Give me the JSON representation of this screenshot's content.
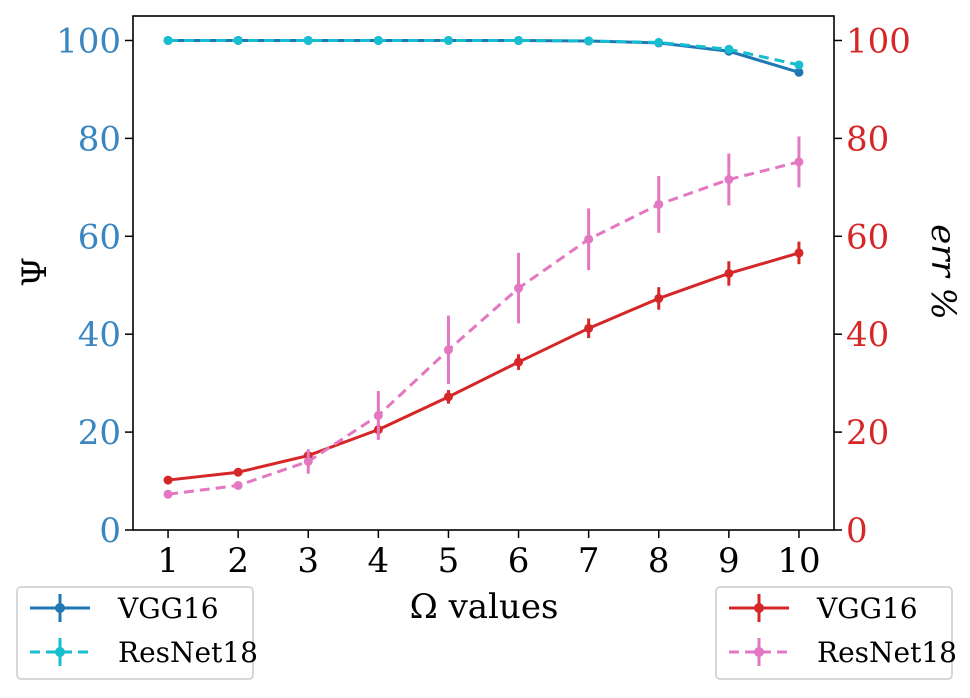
{
  "chart_data": {
    "type": "line",
    "x": [
      1,
      2,
      3,
      4,
      5,
      6,
      7,
      8,
      9,
      10
    ],
    "xlim": [
      0.5,
      10.5
    ],
    "xticks": [
      1,
      2,
      3,
      4,
      5,
      6,
      7,
      8,
      9,
      10
    ],
    "xlabel": "Ω values",
    "left_axis": {
      "label": "Ψ",
      "color": "#3a86c1",
      "ylim": [
        0,
        105
      ],
      "ticks": [
        0,
        20,
        40,
        60,
        80,
        100
      ]
    },
    "right_axis": {
      "label": "err %",
      "color": "#d62728",
      "ylim": [
        0,
        105
      ],
      "ticks": [
        0,
        20,
        40,
        60,
        80,
        100
      ]
    },
    "series": [
      {
        "name": "VGG16",
        "axis": "left",
        "color": "#1f77b4",
        "linestyle": "solid",
        "values": [
          100,
          100,
          100,
          100,
          100,
          100,
          99.9,
          99.5,
          97.8,
          93.5
        ],
        "errors": [
          0,
          0,
          0,
          0,
          0,
          0,
          0,
          0,
          0,
          0
        ]
      },
      {
        "name": "ResNet18",
        "axis": "left",
        "color": "#17becf",
        "linestyle": "dashed",
        "values": [
          100,
          100,
          100,
          100,
          100,
          100,
          99.9,
          99.6,
          98.2,
          95.0
        ],
        "errors": [
          0,
          0,
          0,
          0,
          0,
          0,
          0,
          0,
          0,
          0
        ]
      },
      {
        "name": "VGG16",
        "axis": "right",
        "color": "#d62728",
        "linestyle": "solid",
        "values": [
          10.2,
          11.8,
          15.2,
          20.5,
          27.2,
          34.3,
          41.2,
          47.3,
          52.4,
          56.6
        ],
        "errors": [
          0.6,
          0.6,
          0.8,
          1.2,
          1.4,
          1.6,
          2.0,
          2.3,
          2.5,
          2.3
        ]
      },
      {
        "name": "ResNet18",
        "axis": "right",
        "color": "#e377c2",
        "linestyle": "dashed",
        "values": [
          7.3,
          9.1,
          14.0,
          23.4,
          36.8,
          49.4,
          59.4,
          66.5,
          71.6,
          75.2
        ],
        "errors": [
          0.5,
          0.6,
          2.5,
          5.0,
          7.0,
          7.2,
          6.3,
          5.8,
          5.3,
          5.2
        ]
      }
    ],
    "legends": [
      {
        "position": "bottom-left",
        "entries": [
          "VGG16",
          "ResNet18"
        ],
        "series_index": [
          0,
          1
        ]
      },
      {
        "position": "bottom-right",
        "entries": [
          "VGG16",
          "ResNet18"
        ],
        "series_index": [
          2,
          3
        ]
      }
    ]
  }
}
